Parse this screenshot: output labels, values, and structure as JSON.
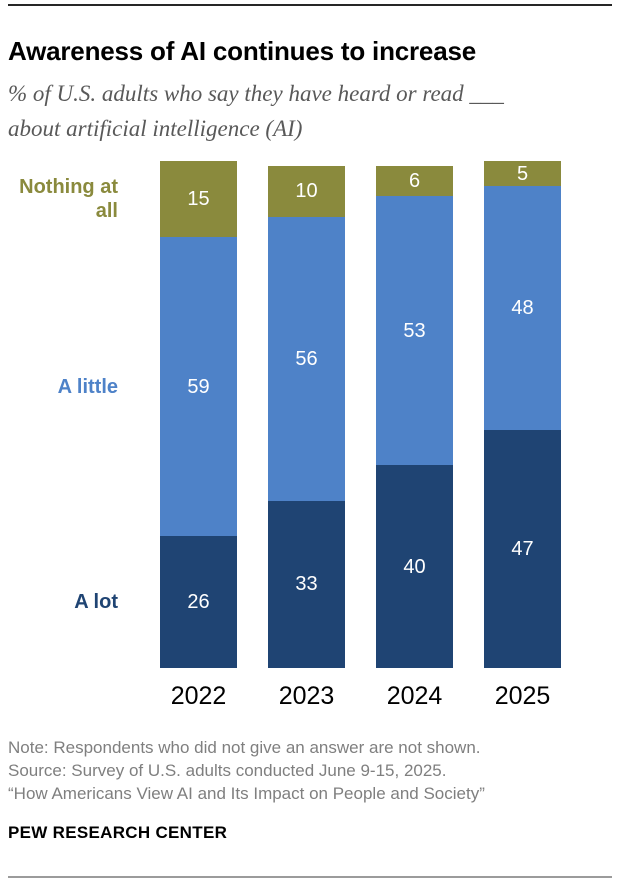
{
  "header": {
    "title": "Awareness of AI continues to increase",
    "subtitle_line1": "% of U.S. adults who say they have heard or read ___",
    "subtitle_line2": "about artificial intelligence (AI)"
  },
  "chart_data": {
    "type": "bar",
    "stacked": true,
    "orientation": "vertical",
    "categories": [
      "2022",
      "2023",
      "2024",
      "2025"
    ],
    "series": [
      {
        "name": "A lot",
        "color": "#1F4473",
        "values": [
          26,
          33,
          40,
          47
        ]
      },
      {
        "name": "A little",
        "color": "#4E82C8",
        "values": [
          59,
          56,
          53,
          48
        ]
      },
      {
        "name": "Nothing at all",
        "color": "#8A8A3D",
        "values": [
          15,
          10,
          6,
          5
        ]
      }
    ],
    "value_label_color": "#FFFFFF",
    "ylim": [
      0,
      100
    ],
    "grid": false,
    "axis_label_color": "#000000",
    "legend_position": "left-inline-series-labels",
    "title": "Awareness of AI continues to increase",
    "xlabel": "",
    "ylabel": ""
  },
  "footer": {
    "note": "Note: Respondents who did not give an answer are not shown.",
    "source": "Source: Survey of U.S. adults conducted June 9-15, 2025.",
    "report": "“How Americans View AI and Its Impact on People and Society”",
    "brand": "PEW RESEARCH CENTER"
  }
}
